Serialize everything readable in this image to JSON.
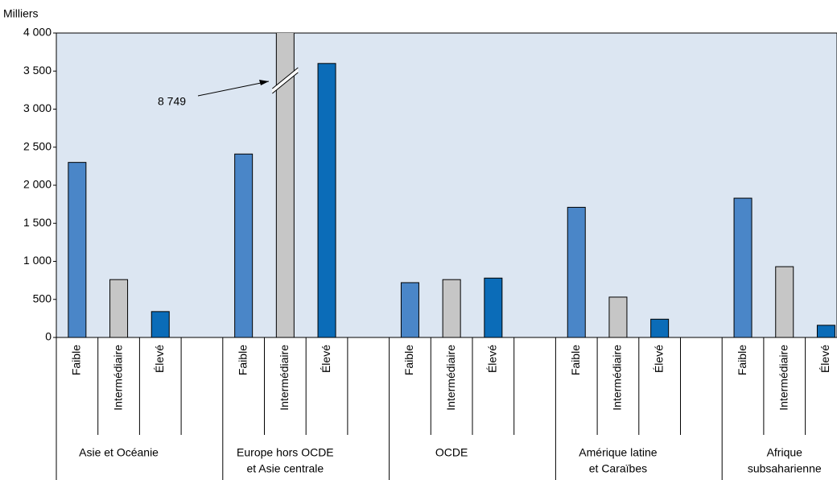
{
  "chart_data": {
    "type": "bar",
    "y_label": "Milliers",
    "categories": [
      [
        "Asie et Océanie"
      ],
      [
        "Europe hors OCDE",
        "et Asie centrale"
      ],
      [
        "OCDE"
      ],
      [
        "Amérique latine",
        "et Caraïbes"
      ],
      [
        "Afrique",
        "subsaharienne"
      ]
    ],
    "series": [
      {
        "name": "Faible",
        "color": "#4a86c8",
        "values": [
          2300,
          2410,
          720,
          1710,
          1830
        ]
      },
      {
        "name": "Intermédiaire",
        "color": "#c6c6c6",
        "values": [
          760,
          8749,
          760,
          530,
          930
        ],
        "value_labels": [
          null,
          "8 749",
          null,
          null,
          null
        ]
      },
      {
        "name": "Élevé",
        "color": "#0b6cb8",
        "values": [
          340,
          3600,
          780,
          240,
          160
        ]
      }
    ],
    "ylim": [
      0,
      4000
    ],
    "yticks": [
      0,
      500,
      {
        "value": 1000,
        "label": "1 000"
      },
      {
        "value": 1500,
        "label": "1 500"
      },
      {
        "value": 2000,
        "label": "2 000"
      },
      {
        "value": 2500,
        "label": "2 500"
      },
      {
        "value": 3000,
        "label": "3 000"
      },
      {
        "value": 3500,
        "label": "3 500"
      },
      {
        "value": 4000,
        "label": "4 000"
      }
    ],
    "grid": false
  }
}
